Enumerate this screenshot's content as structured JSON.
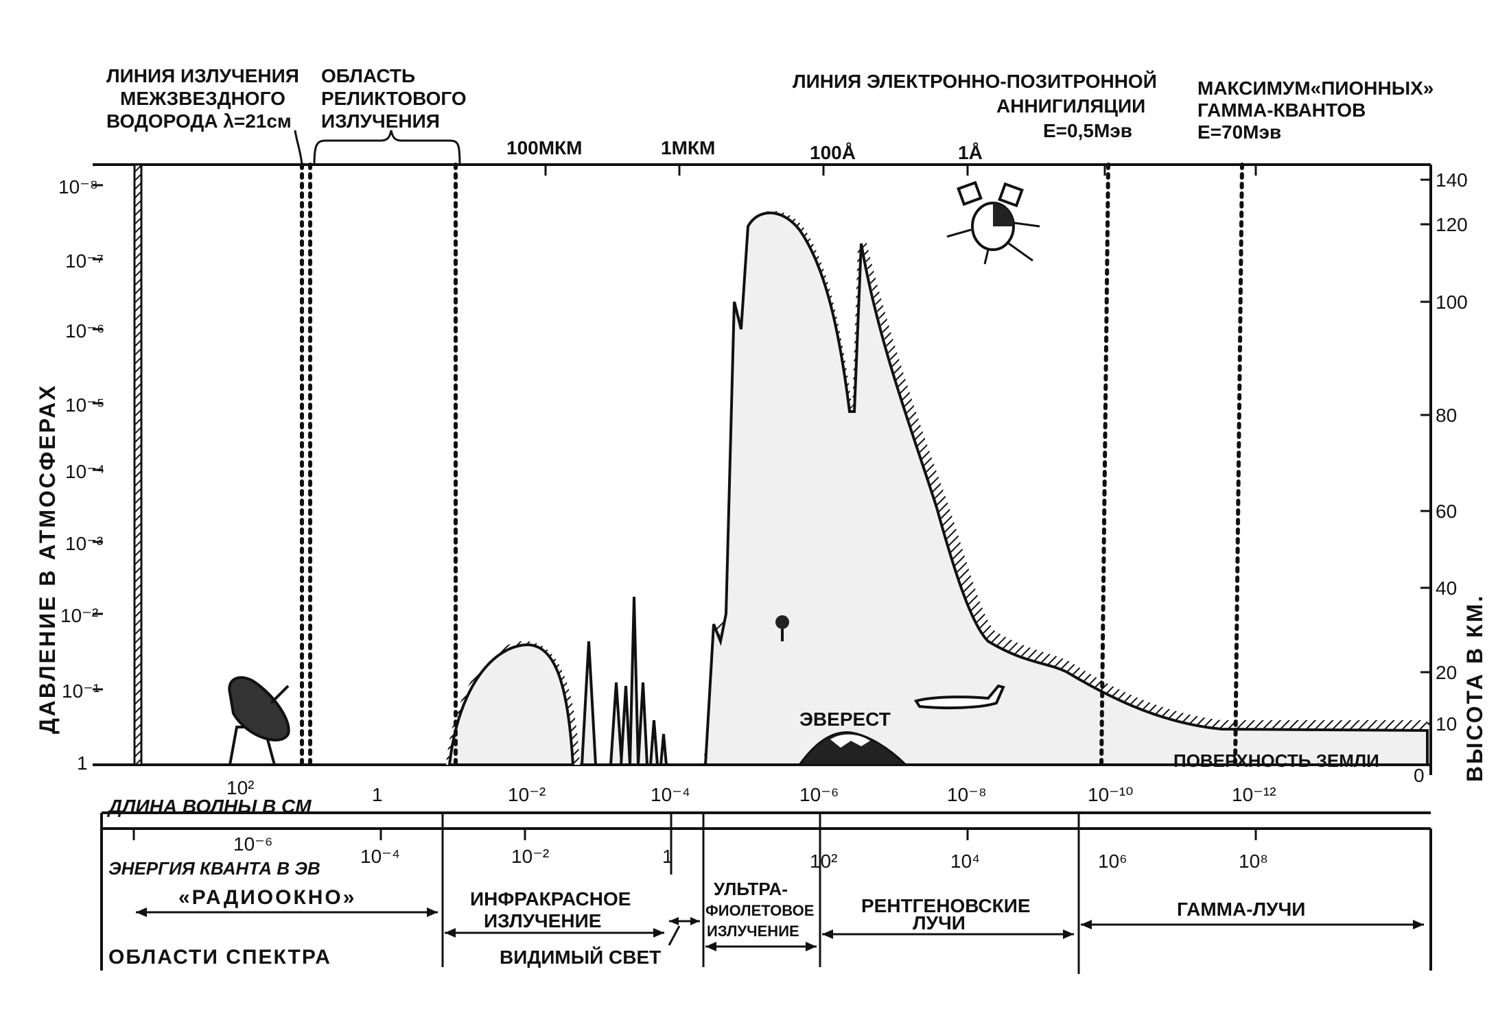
{
  "top_labels": {
    "h21_line1": "ЛИНИЯ ИЗЛУЧЕНИЯ",
    "h21_line2": "МЕЖЗВЕЗДНОГО",
    "h21_line3": "ВОДОРОДА λ=21см",
    "relic_line1": "ОБЛАСТЬ",
    "relic_line2": "РЕЛИКТОВОГО",
    "relic_line3": "ИЗЛУЧЕНИЯ",
    "annih_line1": "ЛИНИЯ ЭЛЕКТРОННО-ПОЗИТРОННОЙ",
    "annih_line2": "АННИГИЛЯЦИИ",
    "annih_line3": "E=0,5Мэв",
    "pion_line1": "МАКСИМУМ«ПИОННЫХ»",
    "pion_line2": "ГАММА-КВАНТОВ",
    "pion_line3": "E=70Мэв"
  },
  "top_axis_ticks": [
    "100МКМ",
    "1МКМ",
    "100Å",
    "1Å"
  ],
  "left_axis": {
    "title": "ДАВЛЕНИЕ В АТМОСФЕРАХ",
    "ticks": [
      "10⁻⁸",
      "10⁻⁷",
      "10⁻⁶",
      "10⁻⁵",
      "10⁻⁴",
      "10⁻³",
      "10⁻²",
      "10⁻¹",
      "1"
    ]
  },
  "right_axis": {
    "title": "ВЫСОТА В КМ.",
    "ticks": [
      "140",
      "120",
      "100",
      "80",
      "60",
      "40",
      "20",
      "10",
      "0"
    ]
  },
  "wavelength_axis": {
    "title": "ДЛИНА ВОЛНЫ В СМ",
    "ticks": [
      "10²",
      "1",
      "10⁻²",
      "10⁻⁴",
      "10⁻⁶",
      "10⁻⁸",
      "10⁻¹⁰",
      "10⁻¹²"
    ]
  },
  "energy_axis": {
    "title": "ЭНЕРГИЯ КВАНТА В ЭВ",
    "ticks": [
      "10⁻⁶",
      "10⁻⁴",
      "10⁻²",
      "1",
      "10²",
      "10⁴",
      "10⁶",
      "10⁸"
    ]
  },
  "regions": {
    "title": "ОБЛАСТИ СПЕКТРА",
    "radio": "«РАДИООКНО»",
    "ir_line1": "ИНФРАКРАСНОЕ",
    "ir_line2": "ИЗЛУЧЕНИЕ",
    "visible": "ВИДИМЫЙ СВЕТ",
    "uv_line1": "УЛЬТРА-",
    "uv_line2": "ФИОЛЕТОВОЕ",
    "uv_line3": "ИЗЛУЧЕНИЕ",
    "xray_line1": "РЕНТГЕНОВСКИЕ",
    "xray_line2": "ЛУЧИ",
    "gamma": "ГАММА-ЛУЧИ"
  },
  "annotations": {
    "everest": "ЭВЕРЕСТ",
    "ground": "ПОВЕРХНОСТЬ ЗЕМЛИ"
  }
}
